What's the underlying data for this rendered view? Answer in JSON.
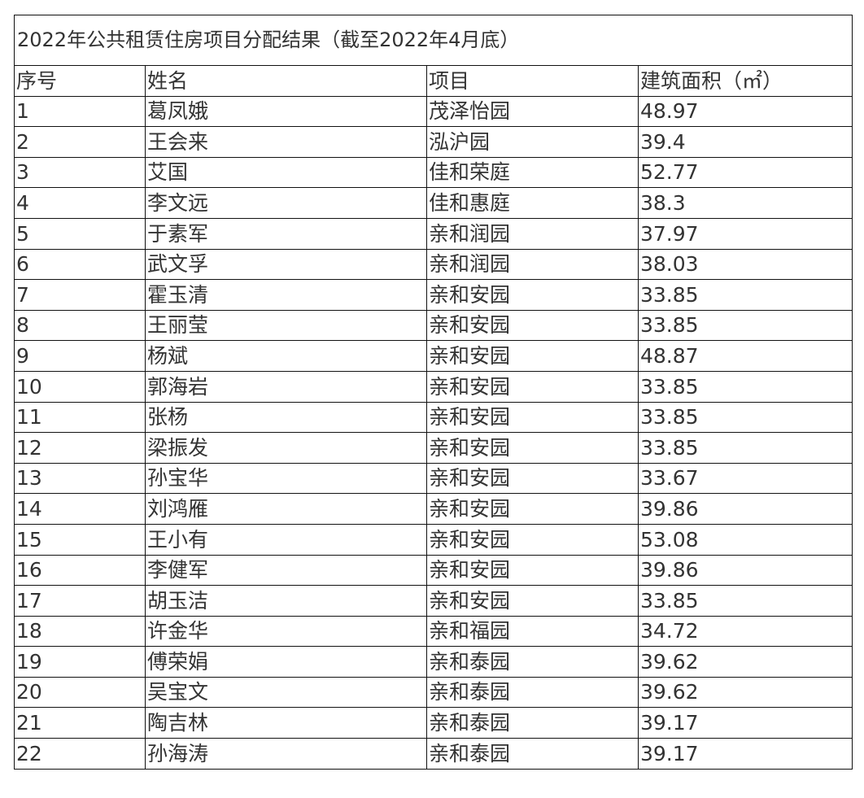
{
  "title": "2022年公共租赁住房项目分配结果（截至2022年4月底）",
  "headers": [
    "序号",
    "姓名",
    "项目",
    "建筑面积（㎡）"
  ],
  "rows": [
    [
      "1",
      "葛凤娥",
      "茂泽怡园",
      "48.97"
    ],
    [
      "2",
      "王会来",
      "泓沪园",
      "39.4"
    ],
    [
      "3",
      "艾国",
      "佳和荣庭",
      "52.77"
    ],
    [
      "4",
      "李文远",
      "佳和惠庭",
      "38.3"
    ],
    [
      "5",
      "于素军",
      "亲和润园",
      "37.97"
    ],
    [
      "6",
      "武文孚",
      "亲和润园",
      "38.03"
    ],
    [
      "7",
      "霍玉清",
      "亲和安园",
      "33.85"
    ],
    [
      "8",
      "王丽莹",
      "亲和安园",
      "33.85"
    ],
    [
      "9",
      "杨斌",
      "亲和安园",
      "48.87"
    ],
    [
      "10",
      "郭海岩",
      "亲和安园",
      "33.85"
    ],
    [
      "11",
      "张杨",
      "亲和安园",
      "33.85"
    ],
    [
      "12",
      "梁振发",
      "亲和安园",
      "33.85"
    ],
    [
      "13",
      "孙宝华",
      "亲和安园",
      "33.67"
    ],
    [
      "14",
      "刘鸿雁",
      "亲和安园",
      "39.86"
    ],
    [
      "15",
      "王小有",
      "亲和安园",
      "53.08"
    ],
    [
      "16",
      "李健军",
      "亲和安园",
      "39.86"
    ],
    [
      "17",
      "胡玉洁",
      "亲和安园",
      "33.85"
    ],
    [
      "18",
      "许金华",
      "亲和福园",
      "34.72"
    ],
    [
      "19",
      "傅荣娟",
      "亲和泰园",
      "39.62"
    ],
    [
      "20",
      "吴宝文",
      "亲和泰园",
      "39.62"
    ],
    [
      "21",
      "陶吉林",
      "亲和泰园",
      "39.17"
    ],
    [
      "22",
      "孙海涛",
      "亲和泰园",
      "39.17"
    ]
  ]
}
